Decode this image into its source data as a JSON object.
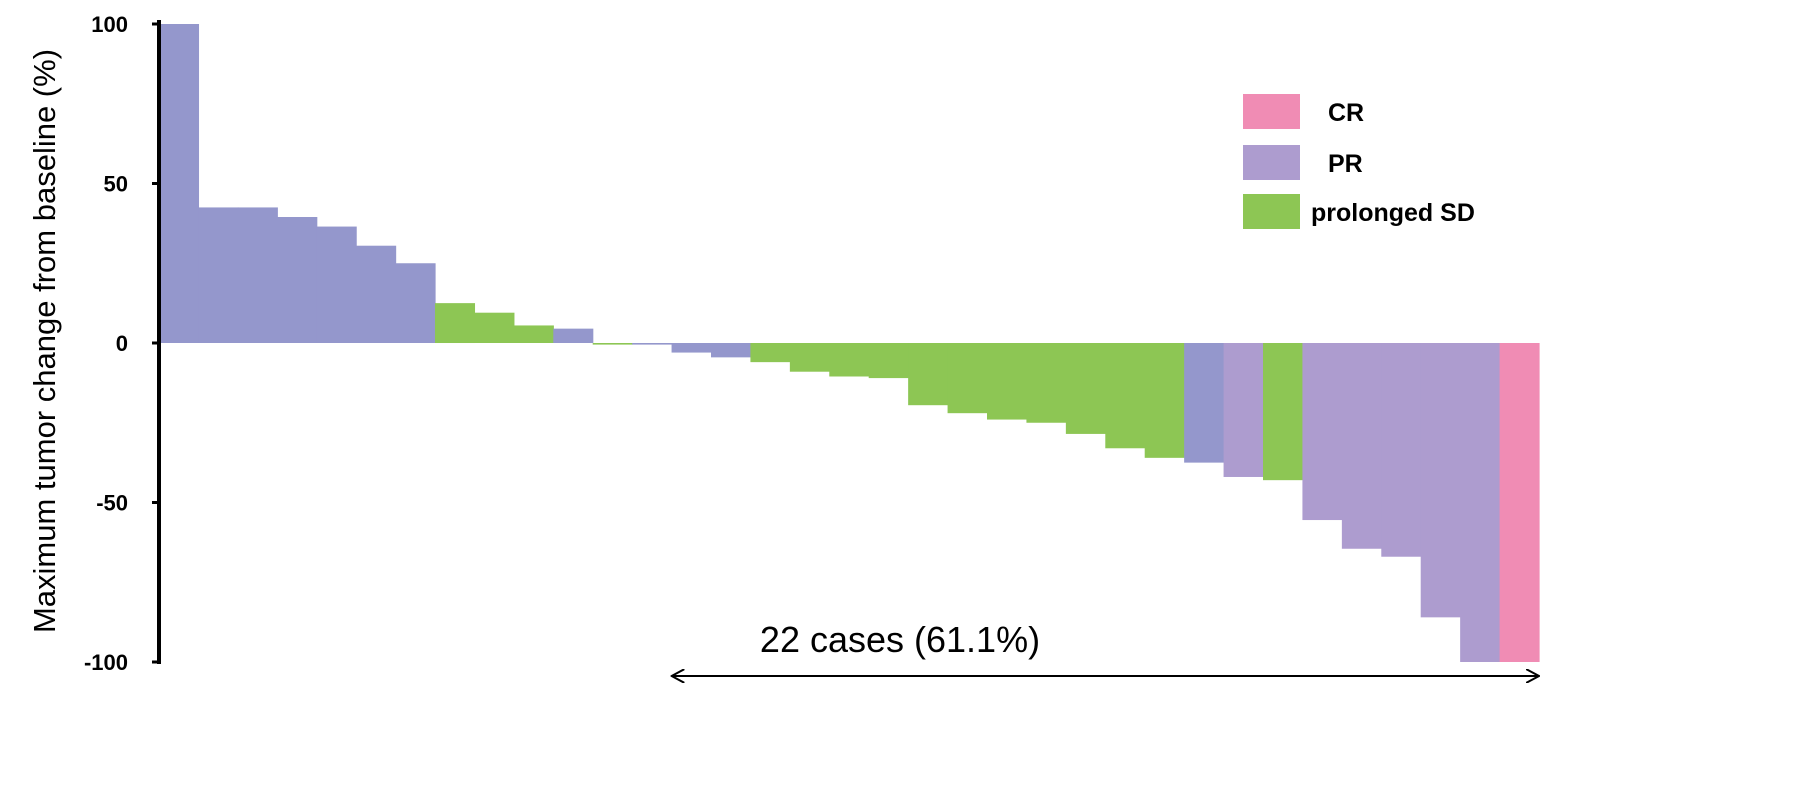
{
  "chart_data": {
    "type": "bar",
    "ylabel": "Maximum tumor change from baseline (%)",
    "xlabel": "",
    "ylim": [
      -100,
      100
    ],
    "yticks": [
      "100",
      "50",
      "0",
      "-50",
      "-100"
    ],
    "ytick_values": [
      100,
      50,
      0,
      -50,
      -100
    ],
    "legend": {
      "placement": "top-right",
      "items": [
        {
          "label": "CR",
          "color": "#f08cb4"
        },
        {
          "label": "PR",
          "color": "#ad9ccf"
        },
        {
          "label": "prolonged SD",
          "color": "#8dc654"
        }
      ]
    },
    "bar_color_other": "#9497cc",
    "bars": [
      {
        "value": 100,
        "response": "other"
      },
      {
        "value": 42.5,
        "response": "other"
      },
      {
        "value": 42.5,
        "response": "other"
      },
      {
        "value": 39.5,
        "response": "other"
      },
      {
        "value": 36.5,
        "response": "other"
      },
      {
        "value": 30.5,
        "response": "other"
      },
      {
        "value": 25,
        "response": "other"
      },
      {
        "value": 12.5,
        "response": "prolonged SD"
      },
      {
        "value": 9.5,
        "response": "prolonged SD"
      },
      {
        "value": 5.5,
        "response": "prolonged SD"
      },
      {
        "value": 4.5,
        "response": "other"
      },
      {
        "value": -0.5,
        "response": "prolonged SD"
      },
      {
        "value": -0.5,
        "response": "other"
      },
      {
        "value": -3,
        "response": "other"
      },
      {
        "value": -4.5,
        "response": "other"
      },
      {
        "value": -6,
        "response": "prolonged SD"
      },
      {
        "value": -9,
        "response": "prolonged SD"
      },
      {
        "value": -10.5,
        "response": "prolonged SD"
      },
      {
        "value": -11,
        "response": "prolonged SD"
      },
      {
        "value": -19.5,
        "response": "prolonged SD"
      },
      {
        "value": -22,
        "response": "prolonged SD"
      },
      {
        "value": -24,
        "response": "prolonged SD"
      },
      {
        "value": -25,
        "response": "prolonged SD"
      },
      {
        "value": -28.5,
        "response": "prolonged SD"
      },
      {
        "value": -33,
        "response": "prolonged SD"
      },
      {
        "value": -36,
        "response": "prolonged SD"
      },
      {
        "value": -37.5,
        "response": "other"
      },
      {
        "value": -42,
        "response": "PR"
      },
      {
        "value": -43,
        "response": "prolonged SD"
      },
      {
        "value": -55.5,
        "response": "PR"
      },
      {
        "value": -64.5,
        "response": "PR"
      },
      {
        "value": -67,
        "response": "PR"
      },
      {
        "value": -86,
        "response": "PR"
      },
      {
        "value": -100,
        "response": "PR"
      },
      {
        "value": -100,
        "response": "CR"
      }
    ],
    "annotation": {
      "text": "22 cases (61.1%)",
      "span_from_bar": 13,
      "span_to_bar": 34
    }
  }
}
